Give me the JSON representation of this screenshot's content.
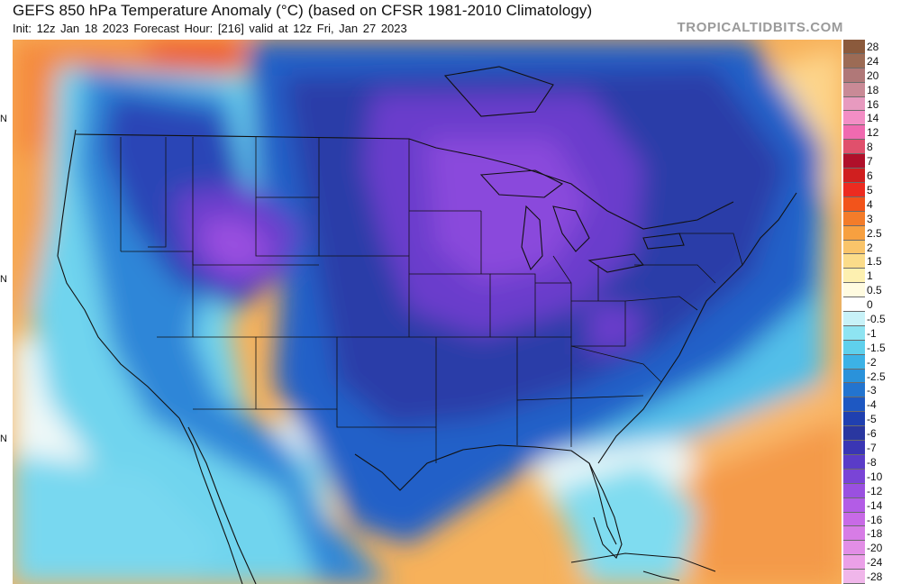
{
  "header": {
    "title": "GEFS 850 hPa Temperature Anomaly (°C) (based on CFSR 1981-2010 Climatology)",
    "subtitle": "Init: 12z Jan 18 2023   Forecast Hour: [216]   valid at 12z Fri, Jan 27 2023",
    "brand": "TROPICALTIDBITS.COM"
  },
  "map": {
    "lat_tick_text": [
      "N",
      "N",
      "N"
    ]
  },
  "colorbar": {
    "labels": [
      "28",
      "24",
      "20",
      "18",
      "16",
      "14",
      "12",
      "8",
      "7",
      "6",
      "5",
      "4",
      "3",
      "2.5",
      "2",
      "1.5",
      "1",
      "0.5",
      "0",
      "-0.5",
      "-1",
      "-1.5",
      "-2",
      "-2.5",
      "-3",
      "-4",
      "-5",
      "-6",
      "-7",
      "-8",
      "-10",
      "-12",
      "-14",
      "-16",
      "-18",
      "-20",
      "-24",
      "-28"
    ],
    "colors": [
      "#8b5a3c",
      "#9c6b55",
      "#b07878",
      "#c98a96",
      "#e79abf",
      "#f38ec5",
      "#f06ab0",
      "#e0506c",
      "#b0102a",
      "#d01f1f",
      "#ec2b20",
      "#f2541b",
      "#f37c2a",
      "#f7a040",
      "#f9c46a",
      "#fbdc8a",
      "#fdf0b0",
      "#fffbe0",
      "#ffffff",
      "#c8f2f8",
      "#8ee4f2",
      "#5fd0ec",
      "#3cb2e6",
      "#2a92da",
      "#2374cf",
      "#1e58c2",
      "#2040b0",
      "#2a37a0",
      "#3a36b4",
      "#5a3cc8",
      "#7a44d6",
      "#9a50e0",
      "#b35ce6",
      "#c86ae6",
      "#d77ce6",
      "#e28ee6",
      "#eba0e8",
      "#f0b6ea"
    ]
  }
}
